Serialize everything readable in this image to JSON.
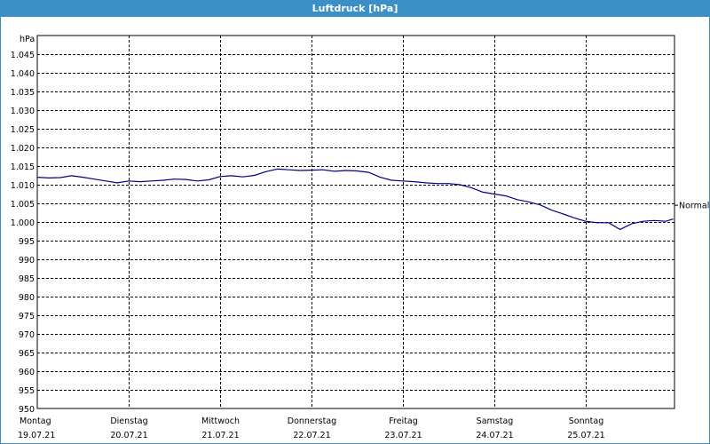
{
  "window": {
    "title": "Luftdruck [hPa]"
  },
  "colors": {
    "titlebar": "#3b8fc6",
    "series": "#00008b",
    "grid": "#000000"
  },
  "chart_data": {
    "type": "line",
    "title": "Luftdruck [hPa]",
    "ylabel": "hPa",
    "ylim": [
      950,
      1050
    ],
    "yticks": [
      950,
      955,
      960,
      965,
      970,
      975,
      980,
      985,
      990,
      995,
      1000,
      1005,
      1010,
      1015,
      1020,
      1025,
      1030,
      1035,
      1040,
      1045
    ],
    "ytick_labels": [
      "950",
      "955",
      "960",
      "965",
      "970",
      "975",
      "980",
      "985",
      "990",
      "995",
      "1.000",
      "1.005",
      "1.010",
      "1.015",
      "1.020",
      "1.025",
      "1.030",
      "1.035",
      "1.040",
      "1.045"
    ],
    "xlim": [
      "2021-07-19 00:00",
      "2021-07-26 00:00"
    ],
    "xticks": [
      {
        "day": "Montag",
        "date": "19.07.21"
      },
      {
        "day": "Dienstag",
        "date": "20.07.21"
      },
      {
        "day": "Mittwoch",
        "date": "21.07.21"
      },
      {
        "day": "Donnerstag",
        "date": "22.07.21"
      },
      {
        "day": "Freitag",
        "date": "23.07.21"
      },
      {
        "day": "Samstag",
        "date": "24.07.21"
      },
      {
        "day": "Sonntag",
        "date": "25.07.21"
      }
    ],
    "grid": true,
    "reference": {
      "label": "Normal",
      "value": 1004.5
    },
    "series": [
      {
        "x": [
          "2021-07-19 00:00",
          "2021-07-19 03:00",
          "2021-07-19 06:00",
          "2021-07-19 09:00",
          "2021-07-19 12:00",
          "2021-07-19 15:00",
          "2021-07-19 18:00",
          "2021-07-19 21:00",
          "2021-07-20 00:00",
          "2021-07-20 03:00",
          "2021-07-20 06:00",
          "2021-07-20 09:00",
          "2021-07-20 12:00",
          "2021-07-20 15:00",
          "2021-07-20 18:00",
          "2021-07-20 21:00",
          "2021-07-21 00:00",
          "2021-07-21 03:00",
          "2021-07-21 06:00",
          "2021-07-21 09:00",
          "2021-07-21 12:00",
          "2021-07-21 15:00",
          "2021-07-21 18:00",
          "2021-07-21 21:00",
          "2021-07-22 00:00",
          "2021-07-22 03:00",
          "2021-07-22 06:00",
          "2021-07-22 09:00",
          "2021-07-22 12:00",
          "2021-07-22 15:00",
          "2021-07-22 18:00",
          "2021-07-22 21:00",
          "2021-07-23 00:00",
          "2021-07-23 03:00",
          "2021-07-23 06:00",
          "2021-07-23 09:00",
          "2021-07-23 12:00",
          "2021-07-23 15:00",
          "2021-07-23 18:00",
          "2021-07-23 21:00",
          "2021-07-24 00:00",
          "2021-07-24 03:00",
          "2021-07-24 06:00",
          "2021-07-24 09:00",
          "2021-07-24 12:00",
          "2021-07-24 15:00",
          "2021-07-24 18:00",
          "2021-07-24 21:00",
          "2021-07-25 00:00",
          "2021-07-25 03:00",
          "2021-07-25 06:00",
          "2021-07-25 09:00",
          "2021-07-25 12:00",
          "2021-07-25 15:00",
          "2021-07-25 18:00",
          "2021-07-25 21:00",
          "2021-07-25 23:00"
        ],
        "values": [
          1012.0,
          1011.8,
          1011.9,
          1012.4,
          1012.0,
          1011.5,
          1011.0,
          1010.5,
          1011.0,
          1010.8,
          1011.0,
          1011.2,
          1011.5,
          1011.4,
          1011.0,
          1011.3,
          1012.2,
          1012.4,
          1012.1,
          1012.5,
          1013.5,
          1014.2,
          1014.0,
          1013.8,
          1013.9,
          1014.0,
          1013.6,
          1013.8,
          1013.7,
          1013.3,
          1012.0,
          1011.2,
          1011.0,
          1010.8,
          1010.5,
          1010.3,
          1010.3,
          1010.0,
          1009.2,
          1008.0,
          1007.5,
          1007.0,
          1006.0,
          1005.4,
          1004.6,
          1003.2,
          1002.2,
          1001.1,
          1000.2,
          999.8,
          999.8,
          998.0,
          999.5,
          1000.2,
          1000.4,
          1000.2,
          1000.8
        ]
      }
    ]
  }
}
